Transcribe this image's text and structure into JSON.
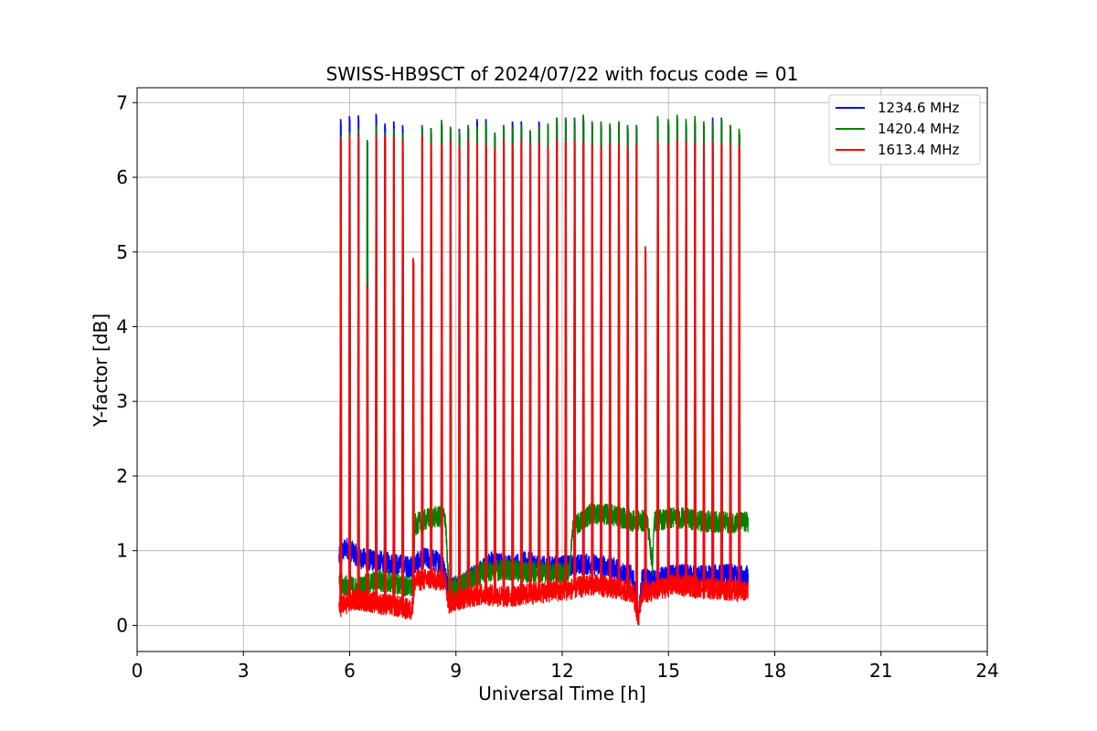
{
  "chart_data": {
    "type": "line",
    "title": "SWISS-HB9SCT of 2024/07/22 with focus code = 01",
    "xlabel": "Universal Time [h]",
    "ylabel": "Y-factor [dB]",
    "xlim": [
      0,
      24
    ],
    "ylim": [
      -0.35,
      7.2
    ],
    "xticks": [
      0,
      3,
      6,
      9,
      12,
      15,
      18,
      21,
      24
    ],
    "yticks": [
      0,
      1,
      2,
      3,
      4,
      5,
      6,
      7
    ],
    "grid": true,
    "legend_position": "top-right",
    "spike_times": [
      5.75,
      6.0,
      6.25,
      6.5,
      6.75,
      7.0,
      7.25,
      7.5,
      7.8,
      8.05,
      8.3,
      8.6,
      8.85,
      9.1,
      9.35,
      9.6,
      9.85,
      10.1,
      10.35,
      10.6,
      10.85,
      11.1,
      11.35,
      11.6,
      11.85,
      12.1,
      12.35,
      12.6,
      12.85,
      13.1,
      13.35,
      13.6,
      13.85,
      14.1,
      14.35,
      14.7,
      15.0,
      15.25,
      15.5,
      15.75,
      16.0,
      16.25,
      16.5,
      16.75,
      17.0
    ],
    "series": [
      {
        "name": "1234.6 MHz",
        "color": "#0000ff",
        "spike_peaks": [
          6.78,
          6.82,
          6.83,
          6.5,
          6.85,
          6.72,
          6.75,
          6.7,
          4.9,
          6.7,
          6.66,
          6.74,
          6.68,
          6.65,
          6.7,
          6.78,
          6.78,
          6.6,
          6.7,
          6.75,
          6.75,
          6.63,
          6.75,
          6.72,
          6.8,
          6.8,
          6.8,
          6.8,
          6.75,
          6.7,
          6.7,
          6.75,
          6.7,
          6.7,
          5.05,
          6.8,
          6.74,
          6.8,
          6.73,
          6.75,
          6.7,
          6.8,
          6.8,
          6.7,
          6.6
        ],
        "baseline": [
          [
            5.7,
            0.9
          ],
          [
            5.9,
            1.05
          ],
          [
            6.3,
            0.9
          ],
          [
            6.9,
            0.85
          ],
          [
            7.5,
            0.8
          ],
          [
            7.75,
            0.78
          ],
          [
            7.85,
            0.82
          ],
          [
            8.1,
            0.9
          ],
          [
            8.6,
            0.85
          ],
          [
            8.8,
            0.5
          ],
          [
            9.2,
            0.55
          ],
          [
            9.6,
            0.7
          ],
          [
            10.0,
            0.85
          ],
          [
            10.5,
            0.8
          ],
          [
            11.0,
            0.85
          ],
          [
            11.5,
            0.78
          ],
          [
            12.2,
            0.8
          ],
          [
            12.8,
            0.82
          ],
          [
            13.4,
            0.78
          ],
          [
            14.0,
            0.65
          ],
          [
            14.15,
            0.05
          ],
          [
            14.25,
            0.62
          ],
          [
            14.5,
            0.6
          ],
          [
            15.2,
            0.68
          ],
          [
            16.0,
            0.66
          ],
          [
            16.6,
            0.68
          ],
          [
            17.25,
            0.66
          ]
        ]
      },
      {
        "name": "1420.4 MHz",
        "color": "#008000",
        "spike_peaks": [
          6.55,
          6.6,
          6.65,
          6.5,
          6.7,
          6.6,
          6.65,
          6.6,
          4.9,
          6.7,
          6.65,
          6.77,
          6.68,
          6.62,
          6.7,
          6.68,
          6.72,
          6.6,
          6.7,
          6.68,
          6.7,
          6.63,
          6.68,
          6.72,
          6.8,
          6.8,
          6.78,
          6.84,
          6.75,
          6.75,
          6.72,
          6.75,
          6.7,
          6.7,
          5.08,
          6.82,
          6.78,
          6.84,
          6.78,
          6.82,
          6.75,
          6.75,
          6.78,
          6.7,
          6.65
        ],
        "baseline": [
          [
            5.7,
            0.55
          ],
          [
            6.2,
            0.5
          ],
          [
            6.8,
            0.6
          ],
          [
            7.4,
            0.55
          ],
          [
            7.75,
            0.5
          ],
          [
            7.85,
            1.35
          ],
          [
            8.3,
            1.45
          ],
          [
            8.7,
            1.45
          ],
          [
            8.8,
            0.45
          ],
          [
            9.3,
            0.6
          ],
          [
            9.8,
            0.72
          ],
          [
            10.4,
            0.75
          ],
          [
            11.0,
            0.72
          ],
          [
            11.6,
            0.72
          ],
          [
            12.2,
            0.68
          ],
          [
            12.3,
            1.3
          ],
          [
            12.8,
            1.5
          ],
          [
            13.4,
            1.48
          ],
          [
            14.0,
            1.4
          ],
          [
            14.2,
            1.4
          ],
          [
            14.4,
            1.4
          ],
          [
            14.55,
            0.8
          ],
          [
            14.6,
            1.4
          ],
          [
            15.2,
            1.45
          ],
          [
            15.8,
            1.4
          ],
          [
            16.5,
            1.38
          ],
          [
            17.25,
            1.38
          ]
        ]
      },
      {
        "name": "1613.4 MHz",
        "color": "#ff0000",
        "spike_peaks": [
          6.52,
          6.55,
          6.58,
          4.55,
          6.58,
          6.55,
          6.55,
          6.5,
          4.92,
          6.55,
          6.45,
          6.45,
          6.5,
          6.42,
          6.5,
          6.45,
          6.45,
          6.4,
          6.5,
          6.45,
          6.5,
          6.45,
          6.48,
          6.42,
          6.5,
          6.48,
          6.5,
          6.48,
          6.45,
          6.42,
          6.45,
          6.45,
          6.42,
          6.45,
          5.05,
          6.48,
          6.45,
          6.5,
          6.48,
          6.45,
          6.45,
          6.48,
          6.45,
          6.45,
          6.42
        ],
        "baseline": [
          [
            5.7,
            0.25
          ],
          [
            6.2,
            0.35
          ],
          [
            6.8,
            0.3
          ],
          [
            7.4,
            0.25
          ],
          [
            7.75,
            0.2
          ],
          [
            7.85,
            0.6
          ],
          [
            8.3,
            0.62
          ],
          [
            8.7,
            0.6
          ],
          [
            8.8,
            0.3
          ],
          [
            9.3,
            0.38
          ],
          [
            9.8,
            0.42
          ],
          [
            10.4,
            0.38
          ],
          [
            11.0,
            0.42
          ],
          [
            11.6,
            0.45
          ],
          [
            12.2,
            0.48
          ],
          [
            12.8,
            0.55
          ],
          [
            13.4,
            0.5
          ],
          [
            14.0,
            0.45
          ],
          [
            14.15,
            0.1
          ],
          [
            14.25,
            0.45
          ],
          [
            14.5,
            0.45
          ],
          [
            15.2,
            0.55
          ],
          [
            16.0,
            0.5
          ],
          [
            16.6,
            0.48
          ],
          [
            17.25,
            0.45
          ]
        ]
      }
    ]
  }
}
